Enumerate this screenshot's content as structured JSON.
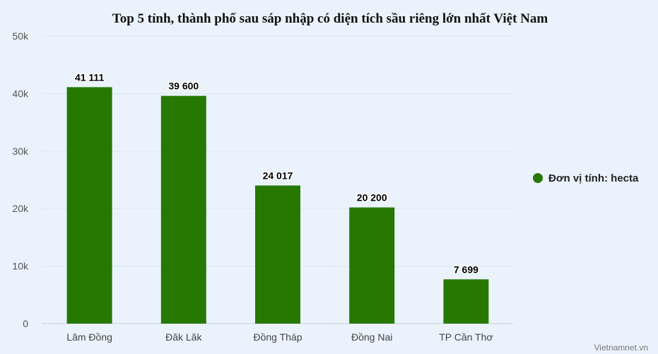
{
  "chart_data": {
    "type": "bar",
    "title": "Top 5 tỉnh, thành phố sau sáp nhập có diện tích sầu riêng lớn nhất Việt Nam",
    "categories": [
      "Lâm Đồng",
      "Đăk Lăk",
      "Đồng Tháp",
      "Đồng Nai",
      "TP Cần Thơ"
    ],
    "series": [
      {
        "name": "Đơn vị tính: hecta",
        "values": [
          41111,
          39600,
          24017,
          20200,
          7699
        ],
        "data_labels": [
          "41 111",
          "39 600",
          "24 017",
          "20 200",
          "7 699"
        ],
        "color": "#267800"
      }
    ],
    "ylim": [
      0,
      50000
    ],
    "yticks": [
      0,
      10000,
      20000,
      30000,
      40000,
      50000
    ],
    "ytick_labels": [
      "0",
      "10k",
      "20k",
      "30k",
      "40k",
      "50k"
    ],
    "grid": true,
    "legend_position": "right",
    "xlabel": "",
    "ylabel": ""
  },
  "credit": "Vietnamnet.vn",
  "colors": {
    "background": "#eaf3fb",
    "bar": "#267800",
    "grid": "#dde6ef"
  }
}
